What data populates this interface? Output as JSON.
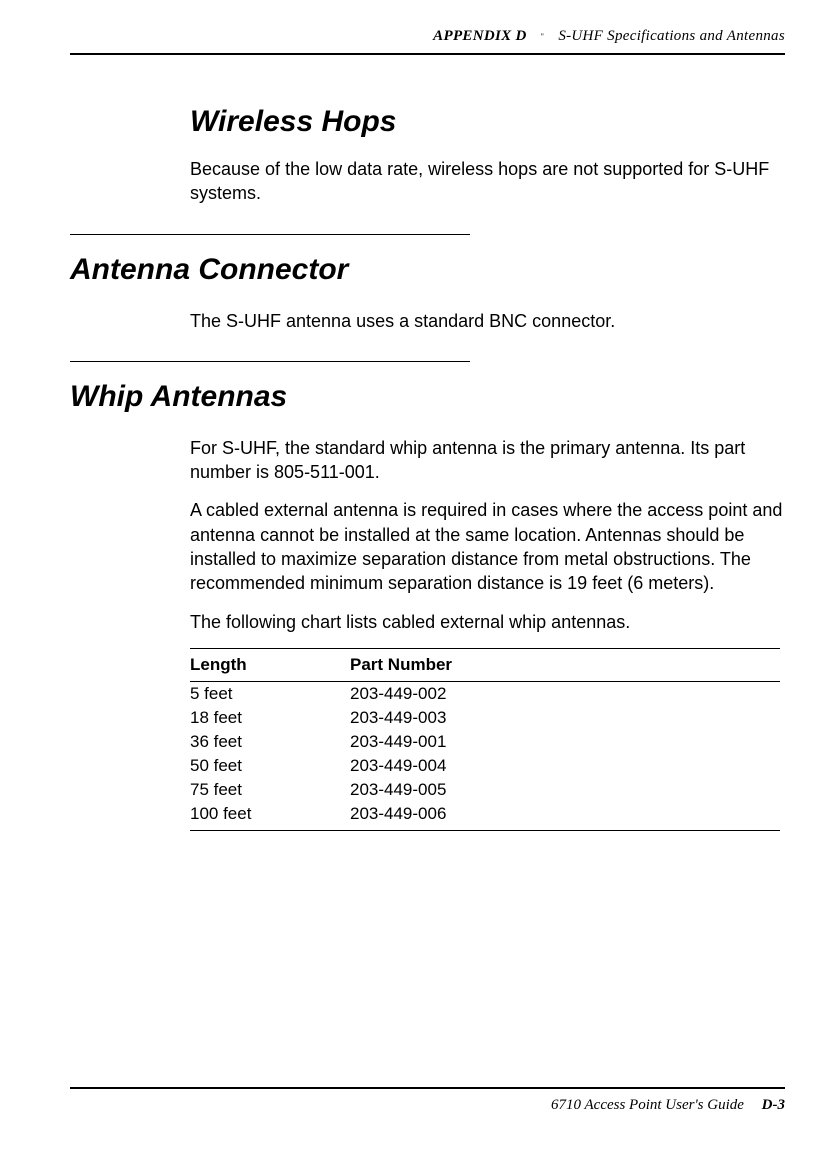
{
  "header": {
    "appendix": "APPENDIX D",
    "bullet": "\"",
    "title": "S-UHF Specifications and Antennas"
  },
  "sections": {
    "wireless_hops": {
      "heading": "Wireless Hops",
      "body1": "Because of the low data rate, wireless hops are not supported for S-UHF systems."
    },
    "antenna_connector": {
      "heading": "Antenna Connector",
      "body1": "The S-UHF antenna uses a standard BNC connector."
    },
    "whip_antennas": {
      "heading": "Whip Antennas",
      "body1": "For S-UHF, the standard whip antenna is the primary antenna.  Its part number is 805-511-001.",
      "body2": "A cabled external antenna is required in cases where the access point and antenna cannot be installed at the same location.  Antennas should be installed to maximize separation distance from metal obstructions.  The recommended minimum separation distance is 19 feet (6 meters).",
      "body3": "The following chart lists cabled external whip antennas."
    }
  },
  "table": {
    "columns": [
      "Length",
      "Part Number"
    ],
    "rows": [
      [
        "5 feet",
        "203-449-002"
      ],
      [
        "18 feet",
        "203-449-003"
      ],
      [
        "36 feet",
        "203-449-001"
      ],
      [
        "50 feet",
        "203-449-004"
      ],
      [
        "75 feet",
        "203-449-005"
      ],
      [
        "100 feet",
        "203-449-006"
      ]
    ]
  },
  "footer": {
    "guide": "6710 Access Point User's Guide",
    "pagenum": "D-3"
  }
}
